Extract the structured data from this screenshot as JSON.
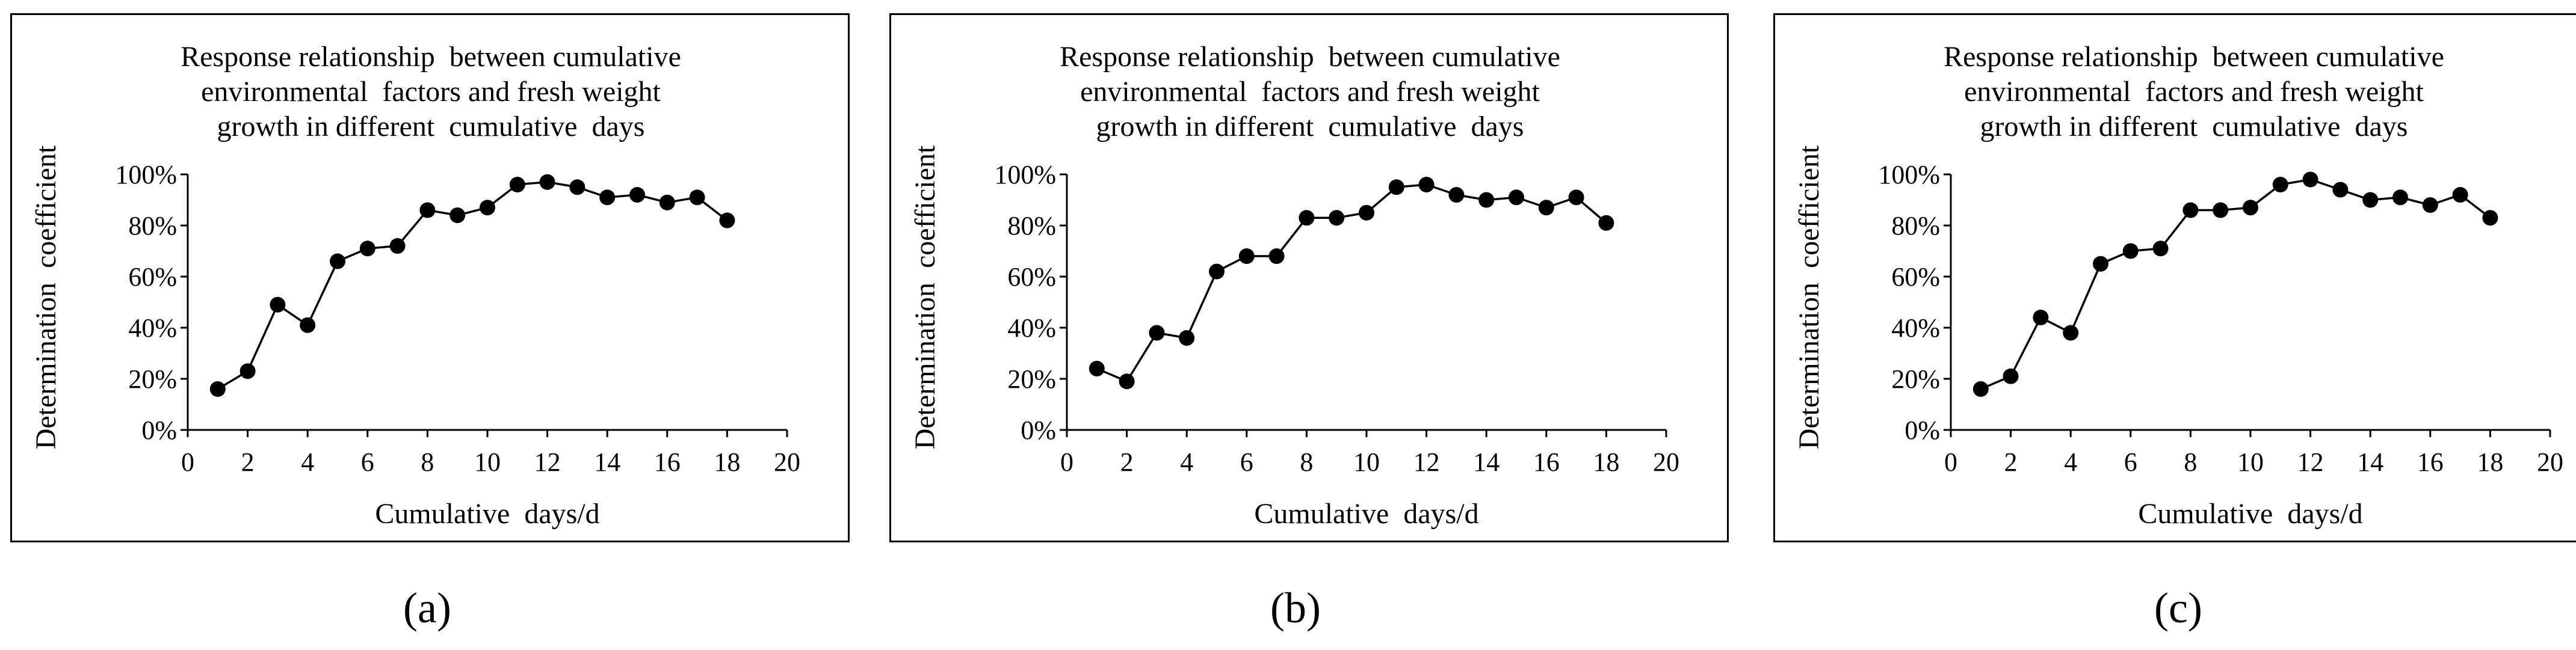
{
  "chart_data": [
    {
      "type": "line",
      "panel_label": "a",
      "title_lines": [
        "Response relationship  between cumulative",
        "environmental  factors and fresh weight",
        "growth in different  cumulative  days"
      ],
      "xlabel": "Cumulative  days/d",
      "ylabel": "Determination  coefficient",
      "xlim": [
        0,
        20
      ],
      "ylim": [
        0,
        100
      ],
      "x_ticks": [
        "0",
        "2",
        "4",
        "6",
        "8",
        "10",
        "12",
        "14",
        "16",
        "18",
        "20"
      ],
      "y_ticks": [
        "0%",
        "20%",
        "40%",
        "60%",
        "80%",
        "100%"
      ],
      "grid": false,
      "series": [
        {
          "x": [
            1,
            2,
            3,
            4,
            5,
            6,
            7,
            8,
            9,
            10,
            11,
            12,
            13,
            14,
            15,
            16,
            17,
            18
          ],
          "y": [
            16,
            23,
            49,
            41,
            66,
            71,
            72,
            86,
            84,
            87,
            96,
            97,
            95,
            91,
            92,
            89,
            91,
            82
          ]
        }
      ]
    },
    {
      "type": "line",
      "panel_label": "b",
      "title_lines": [
        "Response relationship  between cumulative",
        "environmental  factors and fresh weight",
        "growth in different  cumulative  days"
      ],
      "xlabel": "Cumulative  days/d",
      "ylabel": "Determination  coefficient",
      "xlim": [
        0,
        20
      ],
      "ylim": [
        0,
        100
      ],
      "x_ticks": [
        "0",
        "2",
        "4",
        "6",
        "8",
        "10",
        "12",
        "14",
        "16",
        "18",
        "20"
      ],
      "y_ticks": [
        "0%",
        "20%",
        "40%",
        "60%",
        "80%",
        "100%"
      ],
      "grid": false,
      "series": [
        {
          "x": [
            1,
            2,
            3,
            4,
            5,
            6,
            7,
            8,
            9,
            10,
            11,
            12,
            13,
            14,
            15,
            16,
            17,
            18
          ],
          "y": [
            24,
            19,
            38,
            36,
            62,
            68,
            68,
            83,
            83,
            85,
            95,
            96,
            92,
            90,
            91,
            87,
            91,
            81
          ]
        }
      ]
    },
    {
      "type": "line",
      "panel_label": "c",
      "title_lines": [
        "Response relationship  between cumulative",
        "environmental  factors and fresh weight",
        "growth in different  cumulative  days"
      ],
      "xlabel": "Cumulative  days/d",
      "ylabel": "Determination  coefficient",
      "xlim": [
        0,
        20
      ],
      "ylim": [
        0,
        100
      ],
      "x_ticks": [
        "0",
        "2",
        "4",
        "6",
        "8",
        "10",
        "12",
        "14",
        "16",
        "18",
        "20"
      ],
      "y_ticks": [
        "0%",
        "20%",
        "40%",
        "60%",
        "80%",
        "100%"
      ],
      "grid": false,
      "series": [
        {
          "x": [
            1,
            2,
            3,
            4,
            5,
            6,
            7,
            8,
            9,
            10,
            11,
            12,
            13,
            14,
            15,
            16,
            17,
            18
          ],
          "y": [
            16,
            21,
            44,
            38,
            65,
            70,
            71,
            86,
            86,
            87,
            96,
            98,
            94,
            90,
            91,
            88,
            92,
            83
          ]
        }
      ]
    }
  ],
  "captions": [
    "(a)",
    "(b)",
    "(c)"
  ]
}
